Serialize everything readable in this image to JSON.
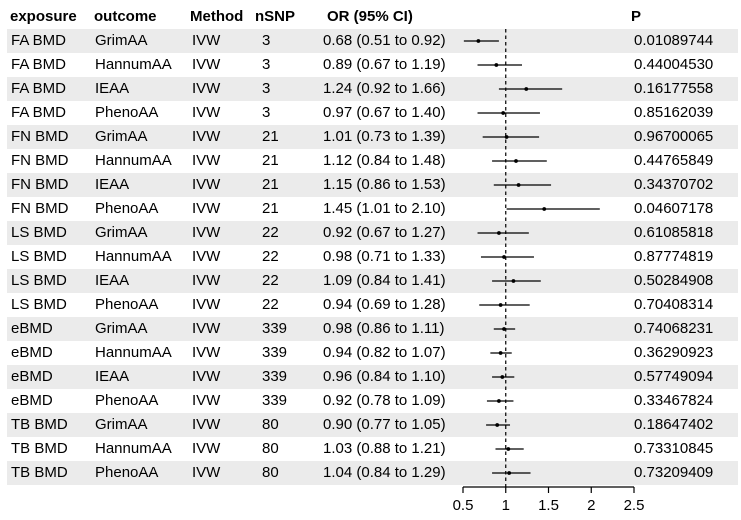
{
  "colors": {
    "background": "#ffffff",
    "stripe": "#ebebeb",
    "text": "#000000",
    "line": "#000000"
  },
  "table": {
    "headers": {
      "exposure": "exposure",
      "outcome": "outcome",
      "method": "Method",
      "nsnp": "nSNP",
      "or_ci": "OR (95% CI)",
      "p": "P"
    },
    "rows": [
      {
        "exposure": "FA BMD",
        "outcome": "GrimAA",
        "method": "IVW",
        "nsnp": "3",
        "or_ci": "0.68 (0.51 to 0.92)",
        "p": "0.01089744"
      },
      {
        "exposure": "FA BMD",
        "outcome": "HannumAA",
        "method": "IVW",
        "nsnp": "3",
        "or_ci": "0.89 (0.67 to 1.19)",
        "p": "0.44004530"
      },
      {
        "exposure": "FA BMD",
        "outcome": "IEAA",
        "method": "IVW",
        "nsnp": "3",
        "or_ci": "1.24 (0.92 to 1.66)",
        "p": "0.16177558"
      },
      {
        "exposure": "FA BMD",
        "outcome": "PhenoAA",
        "method": "IVW",
        "nsnp": "3",
        "or_ci": "0.97 (0.67 to 1.40)",
        "p": "0.85162039"
      },
      {
        "exposure": "FN BMD",
        "outcome": "GrimAA",
        "method": "IVW",
        "nsnp": "21",
        "or_ci": "1.01 (0.73 to 1.39)",
        "p": "0.96700065"
      },
      {
        "exposure": "FN BMD",
        "outcome": "HannumAA",
        "method": "IVW",
        "nsnp": "21",
        "or_ci": "1.12 (0.84 to 1.48)",
        "p": "0.44765849"
      },
      {
        "exposure": "FN BMD",
        "outcome": "IEAA",
        "method": "IVW",
        "nsnp": "21",
        "or_ci": "1.15 (0.86 to 1.53)",
        "p": "0.34370702"
      },
      {
        "exposure": "FN BMD",
        "outcome": "PhenoAA",
        "method": "IVW",
        "nsnp": "21",
        "or_ci": "1.45 (1.01 to 2.10)",
        "p": "0.04607178"
      },
      {
        "exposure": "LS BMD",
        "outcome": "GrimAA",
        "method": "IVW",
        "nsnp": "22",
        "or_ci": "0.92 (0.67 to 1.27)",
        "p": "0.61085818"
      },
      {
        "exposure": "LS BMD",
        "outcome": "HannumAA",
        "method": "IVW",
        "nsnp": "22",
        "or_ci": "0.98 (0.71 to 1.33)",
        "p": "0.87774819"
      },
      {
        "exposure": "LS BMD",
        "outcome": "IEAA",
        "method": "IVW",
        "nsnp": "22",
        "or_ci": "1.09 (0.84 to 1.41)",
        "p": "0.50284908"
      },
      {
        "exposure": "LS BMD",
        "outcome": "PhenoAA",
        "method": "IVW",
        "nsnp": "22",
        "or_ci": "0.94 (0.69 to 1.28)",
        "p": "0.70408314"
      },
      {
        "exposure": "eBMD",
        "outcome": "GrimAA",
        "method": "IVW",
        "nsnp": "339",
        "or_ci": "0.98 (0.86 to 1.11)",
        "p": "0.74068231"
      },
      {
        "exposure": "eBMD",
        "outcome": "HannumAA",
        "method": "IVW",
        "nsnp": "339",
        "or_ci": "0.94 (0.82 to 1.07)",
        "p": "0.36290923"
      },
      {
        "exposure": "eBMD",
        "outcome": "IEAA",
        "method": "IVW",
        "nsnp": "339",
        "or_ci": "0.96 (0.84 to 1.10)",
        "p": "0.57749094"
      },
      {
        "exposure": "eBMD",
        "outcome": "PhenoAA",
        "method": "IVW",
        "nsnp": "339",
        "or_ci": "0.92 (0.78 to 1.09)",
        "p": "0.33467824"
      },
      {
        "exposure": "TB BMD",
        "outcome": "GrimAA",
        "method": "IVW",
        "nsnp": "80",
        "or_ci": "0.90 (0.77 to 1.05)",
        "p": "0.18647402"
      },
      {
        "exposure": "TB BMD",
        "outcome": "HannumAA",
        "method": "IVW",
        "nsnp": "80",
        "or_ci": "1.03 (0.88 to 1.21)",
        "p": "0.73310845"
      },
      {
        "exposure": "TB BMD",
        "outcome": "PhenoAA",
        "method": "IVW",
        "nsnp": "80",
        "or_ci": "1.04 (0.84 to 1.29)",
        "p": "0.73209409"
      }
    ]
  },
  "chart_data": {
    "type": "forest",
    "title": "",
    "xlabel": "",
    "xlim": [
      0.5,
      2.5
    ],
    "x_ticks": [
      0.5,
      1,
      1.5,
      2,
      2.5
    ],
    "reference_line": 1,
    "grid": false,
    "series": [
      {
        "label": "FA BMD GrimAA",
        "or": 0.68,
        "lo": 0.51,
        "hi": 0.92
      },
      {
        "label": "FA BMD HannumAA",
        "or": 0.89,
        "lo": 0.67,
        "hi": 1.19
      },
      {
        "label": "FA BMD IEAA",
        "or": 1.24,
        "lo": 0.92,
        "hi": 1.66
      },
      {
        "label": "FA BMD PhenoAA",
        "or": 0.97,
        "lo": 0.67,
        "hi": 1.4
      },
      {
        "label": "FN BMD GrimAA",
        "or": 1.01,
        "lo": 0.73,
        "hi": 1.39
      },
      {
        "label": "FN BMD HannumAA",
        "or": 1.12,
        "lo": 0.84,
        "hi": 1.48
      },
      {
        "label": "FN BMD IEAA",
        "or": 1.15,
        "lo": 0.86,
        "hi": 1.53
      },
      {
        "label": "FN BMD PhenoAA",
        "or": 1.45,
        "lo": 1.01,
        "hi": 2.1
      },
      {
        "label": "LS BMD GrimAA",
        "or": 0.92,
        "lo": 0.67,
        "hi": 1.27
      },
      {
        "label": "LS BMD HannumAA",
        "or": 0.98,
        "lo": 0.71,
        "hi": 1.33
      },
      {
        "label": "LS BMD IEAA",
        "or": 1.09,
        "lo": 0.84,
        "hi": 1.41
      },
      {
        "label": "LS BMD PhenoAA",
        "or": 0.94,
        "lo": 0.69,
        "hi": 1.28
      },
      {
        "label": "eBMD GrimAA",
        "or": 0.98,
        "lo": 0.86,
        "hi": 1.11
      },
      {
        "label": "eBMD HannumAA",
        "or": 0.94,
        "lo": 0.82,
        "hi": 1.07
      },
      {
        "label": "eBMD IEAA",
        "or": 0.96,
        "lo": 0.84,
        "hi": 1.1
      },
      {
        "label": "eBMD PhenoAA",
        "or": 0.92,
        "lo": 0.78,
        "hi": 1.09
      },
      {
        "label": "TB BMD GrimAA",
        "or": 0.9,
        "lo": 0.77,
        "hi": 1.05
      },
      {
        "label": "TB BMD HannumAA",
        "or": 1.03,
        "lo": 0.88,
        "hi": 1.21
      },
      {
        "label": "TB BMD PhenoAA",
        "or": 1.04,
        "lo": 0.84,
        "hi": 1.29
      }
    ]
  }
}
